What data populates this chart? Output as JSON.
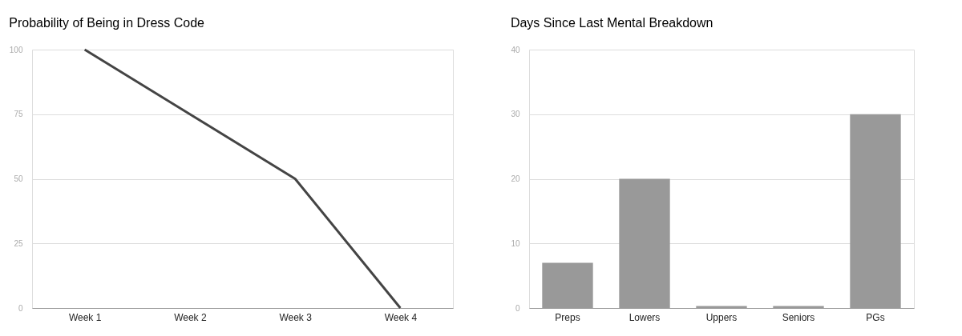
{
  "chart_data": [
    {
      "type": "line",
      "title": "Probability of Being in Dress Code",
      "categories": [
        "Week 1",
        "Week 2",
        "Week 3",
        "Week 4"
      ],
      "series": [
        {
          "color": "#444444",
          "values": [
            100,
            75,
            50,
            0
          ]
        }
      ],
      "ylim": [
        0,
        100
      ],
      "yticks": [
        0,
        25,
        50,
        75,
        100
      ],
      "grid": "y",
      "marker": "none",
      "line_style": "solid"
    },
    {
      "type": "bar",
      "title": "Days Since Last Mental Breakdown",
      "categories": [
        "Preps",
        "Lowers",
        "Uppers",
        "Seniors",
        "PGs"
      ],
      "series": [
        {
          "color": "#999999",
          "values": [
            7,
            20,
            0.3,
            0.3,
            30
          ]
        }
      ],
      "ylim": [
        0,
        40
      ],
      "yticks": [
        0,
        10,
        20,
        30,
        40
      ],
      "grid": "y"
    }
  ]
}
